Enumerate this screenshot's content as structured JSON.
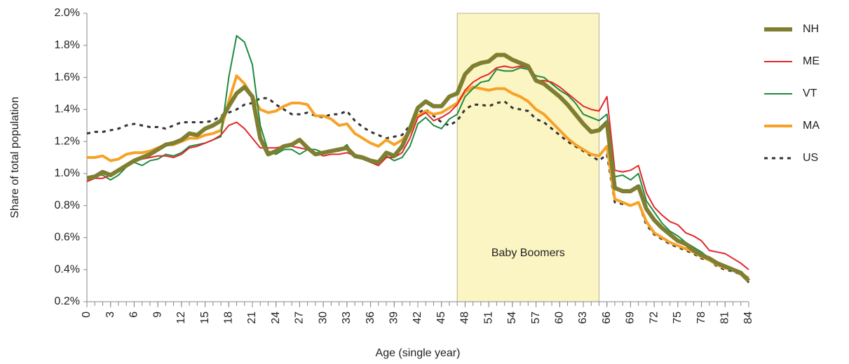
{
  "chart_data": {
    "type": "line",
    "xlabel": "Age (single year)",
    "ylabel": "Share of total population",
    "x": [
      0,
      1,
      2,
      3,
      4,
      5,
      6,
      7,
      8,
      9,
      10,
      11,
      12,
      13,
      14,
      15,
      16,
      17,
      18,
      19,
      20,
      21,
      22,
      23,
      24,
      25,
      26,
      27,
      28,
      29,
      30,
      31,
      32,
      33,
      34,
      35,
      36,
      37,
      38,
      39,
      40,
      41,
      42,
      43,
      44,
      45,
      46,
      47,
      48,
      49,
      50,
      51,
      52,
      53,
      54,
      55,
      56,
      57,
      58,
      59,
      60,
      61,
      62,
      63,
      64,
      65,
      66,
      67,
      68,
      69,
      70,
      71,
      72,
      73,
      74,
      75,
      76,
      77,
      78,
      79,
      80,
      81,
      82,
      83,
      84
    ],
    "xlim": [
      0,
      84
    ],
    "xticks": [
      0,
      3,
      6,
      9,
      12,
      15,
      18,
      21,
      24,
      27,
      30,
      33,
      36,
      39,
      42,
      45,
      48,
      51,
      54,
      57,
      60,
      63,
      66,
      69,
      72,
      75,
      78,
      81,
      84
    ],
    "ylim": [
      0.2,
      2.0
    ],
    "yticks": [
      {
        "value": 0.2,
        "label": "0.2%"
      },
      {
        "value": 0.4,
        "label": "0.4%"
      },
      {
        "value": 0.6,
        "label": "0.6%"
      },
      {
        "value": 0.8,
        "label": "0.8%"
      },
      {
        "value": 1.0,
        "label": "1.0%"
      },
      {
        "value": 1.2,
        "label": "1.2%"
      },
      {
        "value": 1.4,
        "label": "1.4%"
      },
      {
        "value": 1.6,
        "label": "1.6%"
      },
      {
        "value": 1.8,
        "label": "1.8%"
      },
      {
        "value": 2.0,
        "label": "2.0%"
      }
    ],
    "grid": false,
    "legend": "right",
    "annotations": [
      {
        "text": "Baby Boomers",
        "x_start": 47,
        "x_end": 65,
        "color": "#fbf5c4"
      }
    ],
    "series": [
      {
        "name": "NH",
        "color": "#7f7f32",
        "linewidth": 6,
        "linestyle": "solid",
        "values": [
          0.97,
          0.98,
          1.01,
          0.99,
          1.02,
          1.05,
          1.08,
          1.1,
          1.12,
          1.15,
          1.18,
          1.19,
          1.21,
          1.25,
          1.24,
          1.28,
          1.3,
          1.33,
          1.42,
          1.5,
          1.54,
          1.48,
          1.22,
          1.12,
          1.14,
          1.17,
          1.18,
          1.21,
          1.16,
          1.12,
          1.13,
          1.14,
          1.15,
          1.16,
          1.11,
          1.1,
          1.08,
          1.07,
          1.13,
          1.11,
          1.17,
          1.28,
          1.41,
          1.45,
          1.42,
          1.42,
          1.48,
          1.5,
          1.62,
          1.67,
          1.69,
          1.7,
          1.74,
          1.74,
          1.71,
          1.69,
          1.67,
          1.58,
          1.56,
          1.52,
          1.48,
          1.43,
          1.37,
          1.31,
          1.26,
          1.27,
          1.32,
          0.91,
          0.89,
          0.89,
          0.92,
          0.78,
          0.71,
          0.66,
          0.62,
          0.58,
          0.56,
          0.52,
          0.49,
          0.47,
          0.44,
          0.42,
          0.4,
          0.38,
          0.33
        ]
      },
      {
        "name": "ME",
        "color": "#e2262b",
        "linewidth": 2,
        "linestyle": "solid",
        "values": [
          0.95,
          0.97,
          0.97,
          0.99,
          1.02,
          1.05,
          1.08,
          1.09,
          1.1,
          1.11,
          1.11,
          1.1,
          1.12,
          1.16,
          1.17,
          1.19,
          1.21,
          1.24,
          1.3,
          1.32,
          1.28,
          1.22,
          1.16,
          1.16,
          1.16,
          1.17,
          1.17,
          1.16,
          1.15,
          1.13,
          1.11,
          1.12,
          1.12,
          1.13,
          1.11,
          1.09,
          1.07,
          1.05,
          1.1,
          1.1,
          1.13,
          1.22,
          1.35,
          1.38,
          1.33,
          1.35,
          1.38,
          1.43,
          1.52,
          1.57,
          1.6,
          1.62,
          1.66,
          1.67,
          1.66,
          1.67,
          1.66,
          1.58,
          1.58,
          1.57,
          1.54,
          1.5,
          1.46,
          1.42,
          1.4,
          1.39,
          1.48,
          1.02,
          1.01,
          1.02,
          1.05,
          0.88,
          0.79,
          0.74,
          0.7,
          0.68,
          0.63,
          0.61,
          0.58,
          0.52,
          0.51,
          0.5,
          0.47,
          0.44,
          0.4
        ]
      },
      {
        "name": "VT",
        "color": "#1e8a3e",
        "linewidth": 2,
        "linestyle": "solid",
        "values": [
          0.98,
          0.99,
          0.99,
          0.96,
          0.99,
          1.04,
          1.07,
          1.05,
          1.08,
          1.09,
          1.12,
          1.11,
          1.13,
          1.17,
          1.18,
          1.19,
          1.21,
          1.23,
          1.6,
          1.86,
          1.82,
          1.68,
          1.3,
          1.14,
          1.12,
          1.15,
          1.15,
          1.12,
          1.15,
          1.15,
          1.13,
          1.14,
          1.14,
          1.18,
          1.1,
          1.09,
          1.07,
          1.05,
          1.11,
          1.08,
          1.1,
          1.17,
          1.31,
          1.35,
          1.3,
          1.28,
          1.34,
          1.37,
          1.48,
          1.53,
          1.57,
          1.58,
          1.65,
          1.64,
          1.64,
          1.66,
          1.65,
          1.61,
          1.6,
          1.56,
          1.52,
          1.49,
          1.44,
          1.37,
          1.35,
          1.33,
          1.37,
          0.98,
          0.99,
          0.96,
          1.0,
          0.83,
          0.76,
          0.69,
          0.64,
          0.61,
          0.57,
          0.54,
          0.51,
          0.47,
          0.45,
          0.42,
          0.4,
          0.38,
          0.34
        ]
      },
      {
        "name": "MA",
        "color": "#f7a227",
        "linewidth": 4,
        "linestyle": "solid",
        "values": [
          1.1,
          1.1,
          1.11,
          1.08,
          1.09,
          1.12,
          1.13,
          1.13,
          1.14,
          1.16,
          1.18,
          1.18,
          1.2,
          1.22,
          1.22,
          1.24,
          1.25,
          1.27,
          1.45,
          1.61,
          1.56,
          1.48,
          1.4,
          1.38,
          1.39,
          1.42,
          1.44,
          1.44,
          1.43,
          1.36,
          1.36,
          1.34,
          1.3,
          1.31,
          1.25,
          1.22,
          1.19,
          1.17,
          1.21,
          1.18,
          1.21,
          1.26,
          1.36,
          1.39,
          1.37,
          1.38,
          1.41,
          1.44,
          1.51,
          1.54,
          1.53,
          1.52,
          1.53,
          1.53,
          1.5,
          1.48,
          1.45,
          1.4,
          1.37,
          1.32,
          1.27,
          1.22,
          1.18,
          1.15,
          1.12,
          1.11,
          1.17,
          0.84,
          0.82,
          0.8,
          0.82,
          0.7,
          0.63,
          0.6,
          0.57,
          0.55,
          0.53,
          0.51,
          0.48,
          0.46,
          0.43,
          0.41,
          0.4,
          0.37,
          0.35
        ]
      },
      {
        "name": "US",
        "color": "#333333",
        "linewidth": 3,
        "linestyle": "dashed",
        "values": [
          1.25,
          1.26,
          1.26,
          1.27,
          1.28,
          1.3,
          1.31,
          1.3,
          1.29,
          1.29,
          1.28,
          1.3,
          1.32,
          1.32,
          1.32,
          1.32,
          1.33,
          1.36,
          1.38,
          1.4,
          1.43,
          1.44,
          1.47,
          1.47,
          1.43,
          1.4,
          1.37,
          1.37,
          1.38,
          1.36,
          1.35,
          1.37,
          1.37,
          1.39,
          1.33,
          1.29,
          1.26,
          1.24,
          1.22,
          1.23,
          1.24,
          1.3,
          1.38,
          1.4,
          1.36,
          1.32,
          1.3,
          1.33,
          1.4,
          1.43,
          1.43,
          1.42,
          1.44,
          1.45,
          1.41,
          1.4,
          1.39,
          1.34,
          1.32,
          1.28,
          1.24,
          1.2,
          1.17,
          1.14,
          1.11,
          1.08,
          1.12,
          0.82,
          0.81,
          0.8,
          0.82,
          0.68,
          0.62,
          0.59,
          0.56,
          0.54,
          0.52,
          0.5,
          0.47,
          0.46,
          0.42,
          0.4,
          0.39,
          0.37,
          0.32
        ]
      }
    ]
  }
}
